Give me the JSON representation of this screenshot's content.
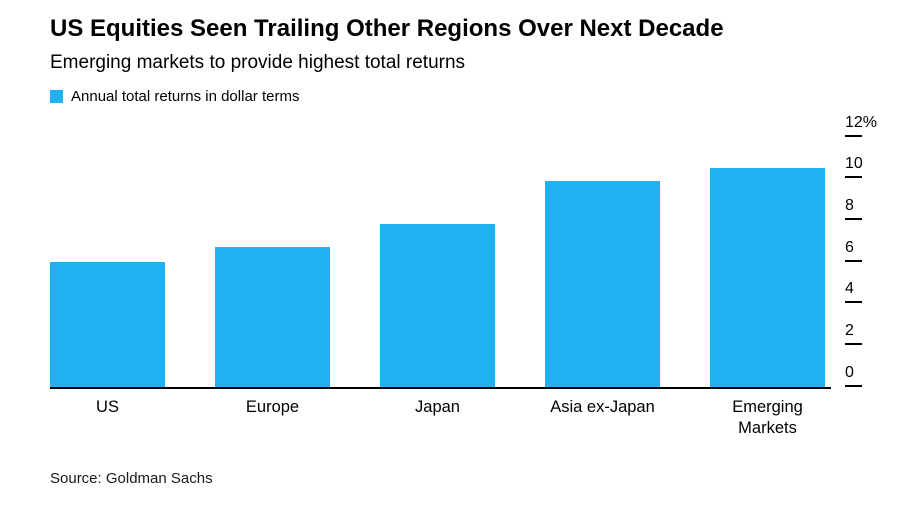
{
  "chart_data": {
    "type": "bar",
    "title": "US Equities Seen Trailing Other Regions Over Next Decade",
    "subtitle": "Emerging markets to provide highest total returns",
    "legend": "Annual total returns in dollar terms",
    "categories": [
      "US",
      "Europe",
      "Japan",
      "Asia ex-Japan",
      "Emerging Markets"
    ],
    "values": [
      6.0,
      6.7,
      7.8,
      9.9,
      10.5
    ],
    "ylabel": "",
    "xlabel": "",
    "ylim": [
      0,
      12
    ],
    "yticks": [
      {
        "value": 12,
        "label": "12%"
      },
      {
        "value": 10,
        "label": "10"
      },
      {
        "value": 8,
        "label": "8"
      },
      {
        "value": 6,
        "label": "6"
      },
      {
        "value": 4,
        "label": "4"
      },
      {
        "value": 2,
        "label": "2"
      },
      {
        "value": 0,
        "label": "0"
      }
    ],
    "legend_position": "top-left",
    "grid": false,
    "bar_color": "#1fb1f2",
    "source": "Source: Goldman Sachs"
  }
}
